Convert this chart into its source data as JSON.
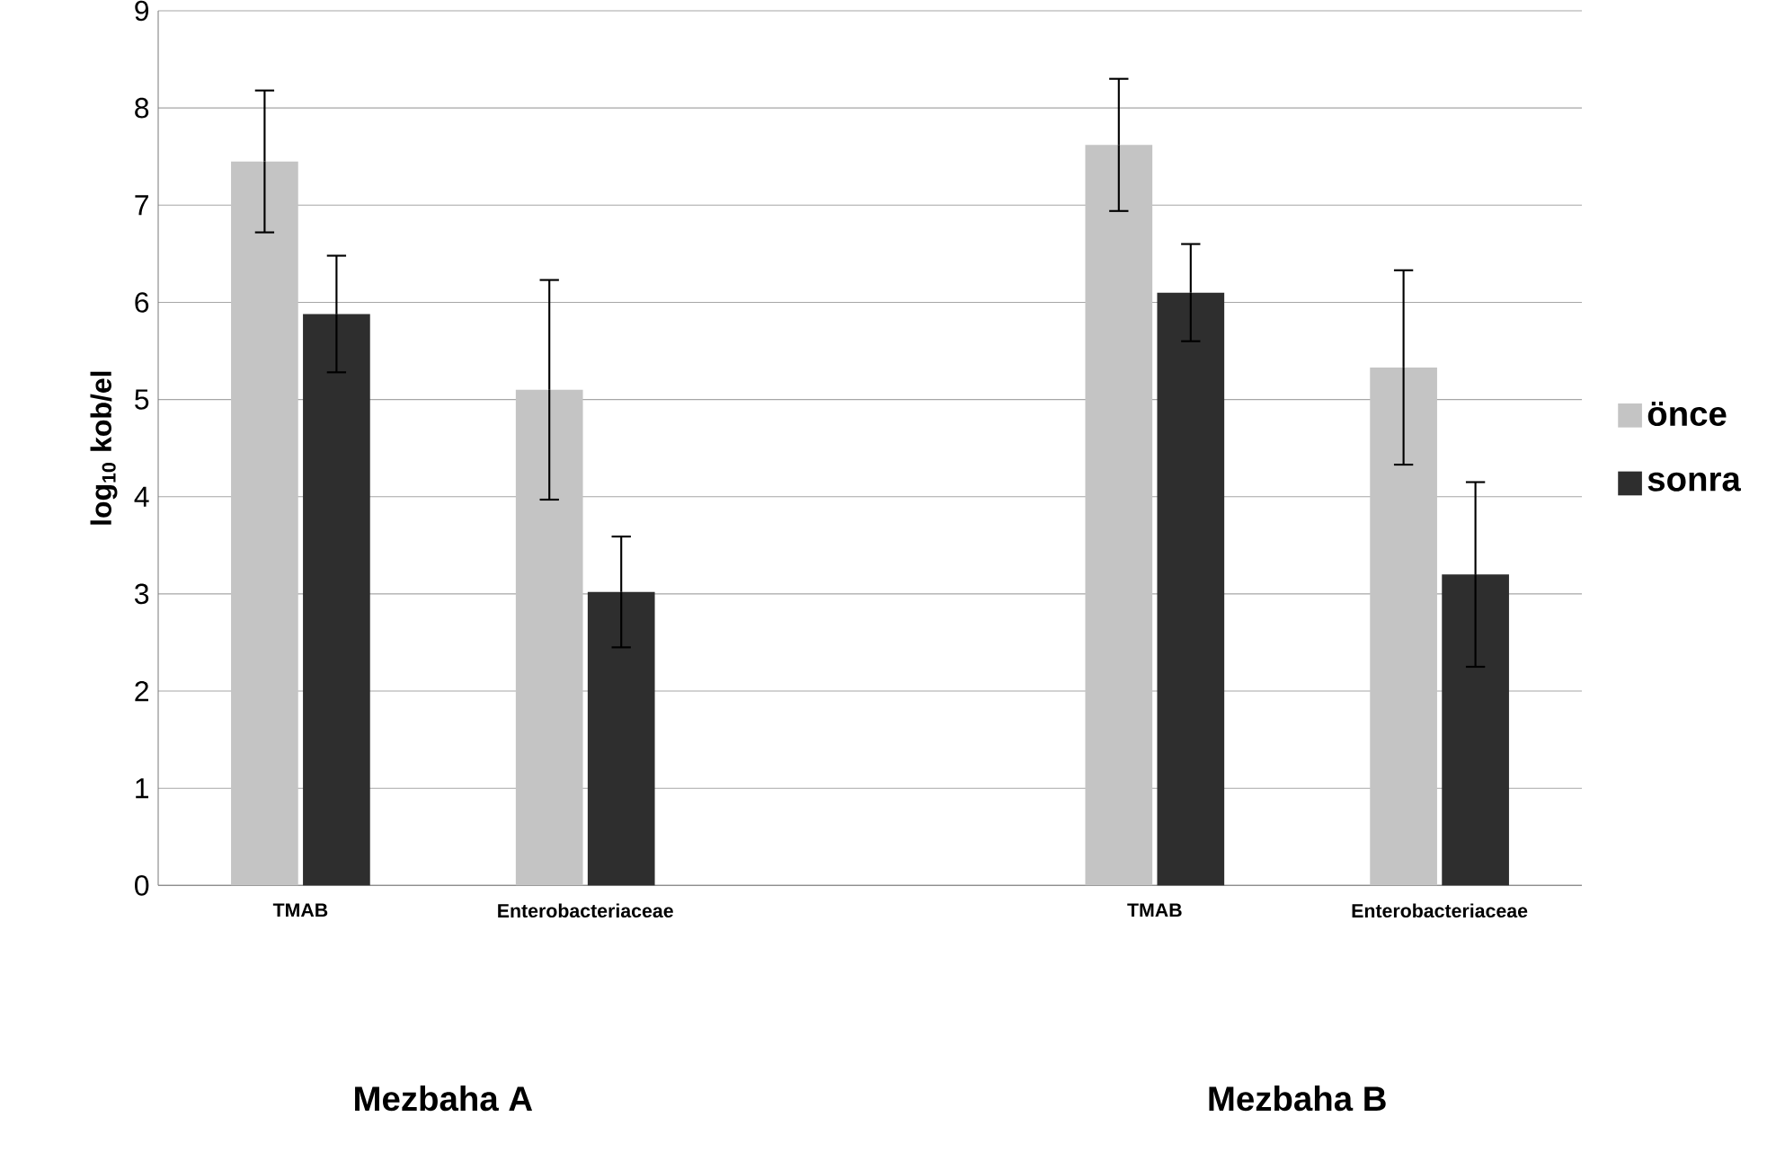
{
  "chart_data": {
    "type": "bar",
    "ylabel": "log$_{10}$ kob/el",
    "categories": [
      "TMAB",
      "Enterobacteriaceae",
      null,
      "TMAB",
      "Enterobacteriaceae"
    ],
    "series": [
      {
        "name": "önce",
        "color": "#c4c4c4",
        "values": [
          7.45,
          5.1,
          null,
          7.62,
          5.33
        ],
        "errors": [
          0.73,
          1.13,
          null,
          0.68,
          1.0
        ]
      },
      {
        "name": "sonra",
        "color": "#2e2e2e",
        "values": [
          5.88,
          3.02,
          null,
          6.1,
          3.2
        ],
        "errors": [
          0.6,
          0.57,
          null,
          0.5,
          0.95
        ]
      }
    ],
    "ylim": [
      0,
      9
    ],
    "yticks": [
      0,
      1,
      2,
      3,
      4,
      5,
      6,
      7,
      8,
      9
    ],
    "grid": "y",
    "legend": "right",
    "annotations": [
      "Mezbaha A",
      "Mezbaha B"
    ]
  }
}
